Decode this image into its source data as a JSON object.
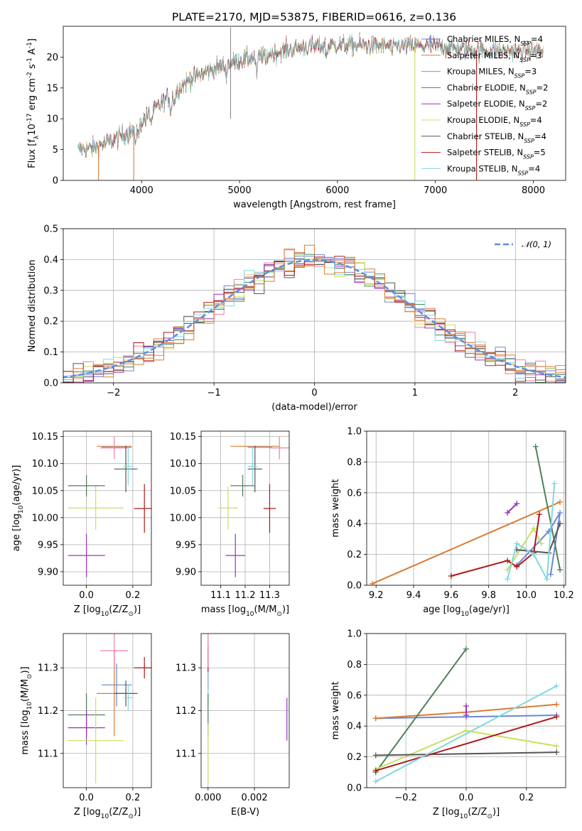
{
  "figure_title": "PLATE=2170, MJD=53875, FIBERID=0616, z=0.136",
  "colors": {
    "chabrier_miles": "#6a86d6",
    "salpeter_miles": "#db7b30",
    "kroupa_miles": "#c98640",
    "chabrier_elodie": "#4f7f5a",
    "salpeter_elodie": "#9b30c0",
    "kroupa_elodie": "#c8e060",
    "chabrier_stelib": "#555555",
    "salpeter_stelib": "#b01818",
    "kroupa_stelib": "#80d8e0",
    "normal": "#5b8fe0",
    "pink": "#ef7fa8"
  },
  "chart_data": [
    {
      "id": "spectrum",
      "type": "line",
      "title": "PLATE=2170, MJD=53875, FIBERID=0616, z=0.136",
      "xlabel": "wavelength [Angstrom, rest frame]",
      "ylabel": "Flux [f$_{\\lambda}$10$^{-17}$ erg cm$^{-2}$ s$^{-1}$ A$^{-1}$]",
      "xlim": [
        3200,
        8330
      ],
      "ylim": [
        0,
        25
      ],
      "xticks": [
        4000,
        5000,
        6000,
        7000,
        8000
      ],
      "yticks": [
        0,
        5,
        10,
        15,
        20
      ],
      "grid": false,
      "legend_position": "top-right",
      "legend": [
        {
          "text": "Chabrier MILES, N",
          "sub": "SSP",
          "val": "=4"
        },
        {
          "text": "Salpeter MILES, N",
          "sub": "SSP",
          "val": "=3"
        },
        {
          "text": "Kroupa MILES, N",
          "sub": "SSP",
          "val": "=3"
        },
        {
          "text": "Chabrier ELODIE, N",
          "sub": "SSP",
          "val": "=2"
        },
        {
          "text": "Salpeter ELODIE, N",
          "sub": "SSP",
          "val": "=2"
        },
        {
          "text": "Kroupa ELODIE, N",
          "sub": "SSP",
          "val": "=4"
        },
        {
          "text": "Chabrier STELIB, N",
          "sub": "SSP",
          "val": "=4"
        },
        {
          "text": "Salpeter STELIB, N",
          "sub": "SSP",
          "val": "=5"
        },
        {
          "text": "Kroupa STELIB, N",
          "sub": "SSP",
          "val": "=4"
        }
      ],
      "continuum": [
        [
          3350,
          5.0
        ],
        [
          3500,
          5.2
        ],
        [
          3700,
          6.5
        ],
        [
          3900,
          8.0
        ],
        [
          4000,
          9.5
        ],
        [
          4200,
          12.5
        ],
        [
          4500,
          16.5
        ],
        [
          4800,
          18.5
        ],
        [
          5000,
          19.5
        ],
        [
          5300,
          20.5
        ],
        [
          5600,
          21.5
        ],
        [
          6000,
          22.0
        ],
        [
          6500,
          21.8
        ],
        [
          7000,
          21.8
        ],
        [
          7500,
          21.0
        ],
        [
          8000,
          21.0
        ],
        [
          8100,
          21.0
        ]
      ],
      "absorption_lines": [
        [
          3933,
          2.5
        ],
        [
          3968,
          2.0
        ],
        [
          4102,
          1.5
        ],
        [
          4300,
          2.5
        ],
        [
          4340,
          1.5
        ],
        [
          4861,
          1.5
        ],
        [
          5175,
          3.0
        ],
        [
          5270,
          1.5
        ],
        [
          5890,
          1.5
        ],
        [
          6563,
          1.0
        ]
      ],
      "noise_amplitude": 2.2,
      "dropouts": [
        {
          "x": 3920,
          "series": 1
        },
        {
          "x": 6790,
          "series": 5
        },
        {
          "x": 7420,
          "series": 7
        },
        {
          "x": 3560,
          "series": 1
        }
      ]
    },
    {
      "id": "residuals",
      "type": "bar",
      "xlabel": "(data-model)/error",
      "ylabel": "Normed distribution",
      "xlim": [
        -2.5,
        2.5
      ],
      "ylim": [
        0,
        0.5
      ],
      "xticks": [
        -2,
        -1,
        0,
        1,
        2
      ],
      "yticks": [
        0.0,
        0.1,
        0.2,
        0.3,
        0.4,
        0.5
      ],
      "grid": true,
      "legend_position": "top-right",
      "legend": [
        {
          "text": "𝒩(0, 1)"
        }
      ],
      "bin_width": 0.1,
      "step_series_count": 10,
      "step_jitter": 0.035,
      "normal": {
        "mu": 0,
        "sigma": 1
      }
    },
    {
      "id": "age_vs_Z",
      "type": "scatter",
      "xlabel": "Z [log$_{10}$(Z/Z$_\\odot$)]",
      "ylabel": "age  [log$_{10}$(age/yr)]",
      "xlim": [
        -0.1,
        0.28
      ],
      "ylim": [
        9.875,
        10.16
      ],
      "xticks": [
        0.0,
        0.2
      ],
      "yticks": [
        9.9,
        9.95,
        10.0,
        10.05,
        10.1,
        10.15
      ],
      "grid": true,
      "points": [
        {
          "c": "chabrier_miles",
          "x": 0.13,
          "xe": 0.065,
          "y": 10.13,
          "ye": 0.0
        },
        {
          "c": "salpeter_miles",
          "x": 0.12,
          "xe": 0.075,
          "y": 10.132,
          "ye": 0.0
        },
        {
          "c": "pink",
          "x": 0.12,
          "xe": 0.06,
          "y": 10.129,
          "ye": 0.021
        },
        {
          "c": "chabrier_elodie",
          "x": 0.0,
          "xe": 0.08,
          "y": 10.059,
          "ye": 0.02
        },
        {
          "c": "salpeter_elodie",
          "x": 0.0,
          "xe": 0.08,
          "y": 9.93,
          "ye": 0.04
        },
        {
          "c": "kroupa_elodie",
          "x": 0.04,
          "xe": 0.12,
          "y": 10.018,
          "ye": 0.04
        },
        {
          "c": "chabrier_stelib",
          "x": 0.17,
          "xe": 0.05,
          "y": 10.09,
          "ye": 0.043
        },
        {
          "c": "salpeter_stelib",
          "x": 0.25,
          "xe": 0.045,
          "y": 10.017,
          "ye": 0.045
        },
        {
          "c": "kroupa_stelib",
          "x": 0.18,
          "xe": 0.02,
          "y": 10.095,
          "ye": 0.035
        }
      ]
    },
    {
      "id": "age_vs_mass",
      "type": "scatter",
      "xlabel": "mass [log$_{10}$(M/M$_\\odot$)]",
      "ylabel": "",
      "xlim": [
        11.02,
        11.38
      ],
      "ylim": [
        9.875,
        10.16
      ],
      "xticks": [
        11.1,
        11.2,
        11.3
      ],
      "yticks": [
        9.9,
        9.95,
        10.0,
        10.05,
        10.1,
        10.15
      ],
      "grid": true,
      "points": [
        {
          "c": "chabrier_miles",
          "x": 11.26,
          "xe": 0.05,
          "y": 10.13,
          "ye": 0.0
        },
        {
          "c": "salpeter_miles",
          "x": 11.24,
          "xe": 0.1,
          "y": 10.132,
          "ye": 0.0
        },
        {
          "c": "pink",
          "x": 11.34,
          "xe": 0.04,
          "y": 10.129,
          "ye": 0.021
        },
        {
          "c": "chabrier_elodie",
          "x": 11.19,
          "xe": 0.05,
          "y": 10.059,
          "ye": 0.02
        },
        {
          "c": "salpeter_elodie",
          "x": 11.16,
          "xe": 0.04,
          "y": 9.93,
          "ye": 0.04
        },
        {
          "c": "kroupa_elodie",
          "x": 11.13,
          "xe": 0.04,
          "y": 10.018,
          "ye": 0.04
        },
        {
          "c": "chabrier_stelib",
          "x": 11.24,
          "xe": 0.03,
          "y": 10.09,
          "ye": 0.043
        },
        {
          "c": "salpeter_stelib",
          "x": 11.3,
          "xe": 0.025,
          "y": 10.017,
          "ye": 0.045
        },
        {
          "c": "kroupa_stelib",
          "x": 11.23,
          "xe": 0.02,
          "y": 10.095,
          "ye": 0.035
        }
      ]
    },
    {
      "id": "weight_vs_age",
      "type": "line",
      "xlabel": "age  [log$_{10}$(age/yr)]",
      "ylabel": "mass weight",
      "xlim": [
        9.15,
        10.21
      ],
      "ylim": [
        0,
        1.0
      ],
      "xticks": [
        9.2,
        9.4,
        9.6,
        9.8,
        10.0,
        10.2
      ],
      "yticks": [
        0.0,
        0.2,
        0.4,
        0.6,
        0.8,
        1.0
      ],
      "grid": true,
      "series": [
        {
          "c": "chabrier_miles",
          "x": [
            9.95,
            10.12,
            10.18,
            10.13
          ],
          "y": [
            0.13,
            0.35,
            0.47,
            0.07
          ]
        },
        {
          "c": "salpeter_miles",
          "x": [
            9.18,
            10.18
          ],
          "y": [
            0.01,
            0.54
          ]
        },
        {
          "c": "chabrier_elodie",
          "x": [
            10.05,
            10.18
          ],
          "y": [
            0.9,
            0.1
          ]
        },
        {
          "c": "salpeter_elodie",
          "x": [
            9.9,
            9.95
          ],
          "y": [
            0.47,
            0.53
          ]
        },
        {
          "c": "kroupa_elodie",
          "x": [
            9.9,
            10.04,
            10.08
          ],
          "y": [
            0.1,
            0.37,
            0.27
          ]
        },
        {
          "c": "chabrier_stelib",
          "x": [
            9.95,
            10.12,
            10.18
          ],
          "y": [
            0.23,
            0.21,
            0.4
          ]
        },
        {
          "c": "salpeter_stelib",
          "x": [
            9.6,
            9.9,
            9.95,
            10.04,
            10.07
          ],
          "y": [
            0.06,
            0.16,
            0.12,
            0.21,
            0.46
          ]
        },
        {
          "c": "kroupa_stelib",
          "x": [
            9.9,
            9.95,
            10.04,
            10.11,
            10.15
          ],
          "y": [
            0.04,
            0.27,
            0.2,
            0.04,
            0.66
          ]
        }
      ]
    },
    {
      "id": "mass_vs_Z",
      "type": "scatter",
      "xlabel": "Z [log$_{10}$(Z/Z$_\\odot$)]",
      "ylabel": "mass [log$_{10}$(M/M$_\\odot$)]",
      "xlim": [
        -0.1,
        0.28
      ],
      "ylim": [
        11.02,
        11.38
      ],
      "xticks": [
        0.0,
        0.2
      ],
      "yticks": [
        11.1,
        11.2,
        11.3
      ],
      "grid": true,
      "points": [
        {
          "c": "chabrier_miles",
          "x": 0.13,
          "xe": 0.065,
          "y": 11.26,
          "ye": 0.05
        },
        {
          "c": "salpeter_miles",
          "x": 0.12,
          "xe": 0.075,
          "y": 11.24,
          "ye": 0.1
        },
        {
          "c": "pink",
          "x": 0.12,
          "xe": 0.06,
          "y": 11.34,
          "ye": 0.04
        },
        {
          "c": "chabrier_elodie",
          "x": 0.0,
          "xe": 0.08,
          "y": 11.19,
          "ye": 0.05
        },
        {
          "c": "salpeter_elodie",
          "x": 0.0,
          "xe": 0.08,
          "y": 11.16,
          "ye": 0.04
        },
        {
          "c": "kroupa_elodie",
          "x": 0.04,
          "xe": 0.12,
          "y": 11.13,
          "ye": 0.1
        },
        {
          "c": "chabrier_stelib",
          "x": 0.17,
          "xe": 0.05,
          "y": 11.24,
          "ye": 0.03
        },
        {
          "c": "salpeter_stelib",
          "x": 0.25,
          "xe": 0.045,
          "y": 11.3,
          "ye": 0.025
        },
        {
          "c": "kroupa_stelib",
          "x": 0.18,
          "xe": 0.02,
          "y": 11.23,
          "ye": 0.03
        }
      ]
    },
    {
      "id": "mass_vs_ebv",
      "type": "scatter",
      "xlabel": "E(B-V)",
      "ylabel": "",
      "xlim": [
        -0.0003,
        0.0035
      ],
      "ylim": [
        11.02,
        11.38
      ],
      "xticks": [
        0.0,
        0.002
      ],
      "yticks": [
        11.1,
        11.2,
        11.3
      ],
      "grid": true,
      "points": [
        {
          "c": "salpeter_stelib",
          "x": 0.0,
          "xe": 0.0,
          "y": 11.3,
          "ye": 0.05
        },
        {
          "c": "pink",
          "x": 0.0,
          "xe": 0.0,
          "y": 11.34,
          "ye": 0.04
        },
        {
          "c": "kroupa_stelib",
          "x": 0.0,
          "xe": 0.0,
          "y": 11.25,
          "ye": 0.04
        },
        {
          "c": "chabrier_elodie",
          "x": 0.0,
          "xe": 0.0,
          "y": 11.19,
          "ye": 0.05
        },
        {
          "c": "kroupa_elodie",
          "x": 0.0,
          "xe": 0.0,
          "y": 11.1,
          "ye": 0.07
        },
        {
          "c": "salpeter_elodie",
          "x": 0.0034,
          "xe": 0.0,
          "y": 11.18,
          "ye": 0.05
        }
      ]
    },
    {
      "id": "weight_vs_Z",
      "type": "line",
      "xlabel": "Z [log$_{10}$(Z/Z$_\\odot$)]",
      "ylabel": "mass weight",
      "xlim": [
        -0.33,
        0.33
      ],
      "ylim": [
        0,
        1.0
      ],
      "xticks": [
        -0.2,
        0.0,
        0.2
      ],
      "yticks": [
        0.0,
        0.2,
        0.4,
        0.6,
        0.8,
        1.0
      ],
      "grid": true,
      "series": [
        {
          "c": "chabrier_miles",
          "x": [
            -0.3,
            0.0,
            0.3
          ],
          "y": [
            0.45,
            0.46,
            0.47
          ]
        },
        {
          "c": "salpeter_miles",
          "x": [
            -0.3,
            0.0,
            0.3
          ],
          "y": [
            0.45,
            0.49,
            0.54
          ]
        },
        {
          "c": "chabrier_elodie",
          "x": [
            -0.3,
            0.0
          ],
          "y": [
            0.1,
            0.9
          ]
        },
        {
          "c": "salpeter_elodie",
          "x": [
            0.0,
            0.0
          ],
          "y": [
            0.47,
            0.53
          ]
        },
        {
          "c": "kroupa_elodie",
          "x": [
            -0.3,
            0.0,
            0.3
          ],
          "y": [
            0.12,
            0.37,
            0.27
          ]
        },
        {
          "c": "chabrier_stelib",
          "x": [
            -0.3,
            0.3
          ],
          "y": [
            0.21,
            0.23
          ]
        },
        {
          "c": "salpeter_stelib",
          "x": [
            -0.3,
            0.3
          ],
          "y": [
            0.11,
            0.46
          ]
        },
        {
          "c": "kroupa_stelib",
          "x": [
            -0.3,
            0.3
          ],
          "y": [
            0.04,
            0.66
          ]
        }
      ]
    }
  ]
}
